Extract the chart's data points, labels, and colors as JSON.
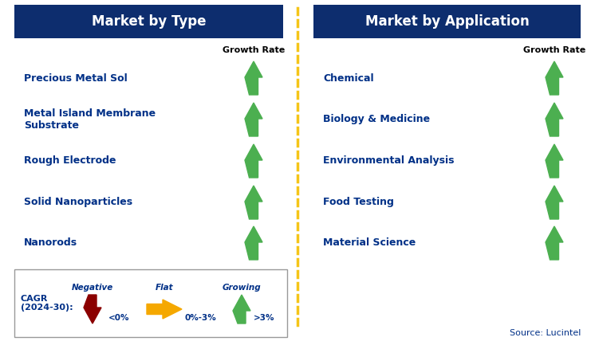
{
  "left_header": "Market by Type",
  "right_header": "Market by Application",
  "left_items": [
    "Precious Metal Sol",
    "Metal Island Membrane\nSubstrate",
    "Rough Electrode",
    "Solid Nanoparticles",
    "Nanorods"
  ],
  "right_items": [
    "Chemical",
    "Biology & Medicine",
    "Environmental Analysis",
    "Food Testing",
    "Material Science"
  ],
  "growth_rate_label": "Growth Rate",
  "header_bg_color": "#0d2d6e",
  "header_text_color": "#ffffff",
  "item_text_color": "#003087",
  "growth_arrow_color": "#4caf50",
  "divider_color": "#f5c518",
  "background_color": "#ffffff",
  "legend_negative_color": "#8b0000",
  "legend_flat_color": "#f5a800",
  "legend_growing_color": "#4caf50",
  "source_text": "Source: Lucintel",
  "cagr_label": "CAGR\n(2024-30):",
  "negative_label": "Negative",
  "negative_range": "<0%",
  "flat_label": "Flat",
  "flat_range": "0%-3%",
  "growing_label": "Growing",
  "growing_range": ">3%"
}
